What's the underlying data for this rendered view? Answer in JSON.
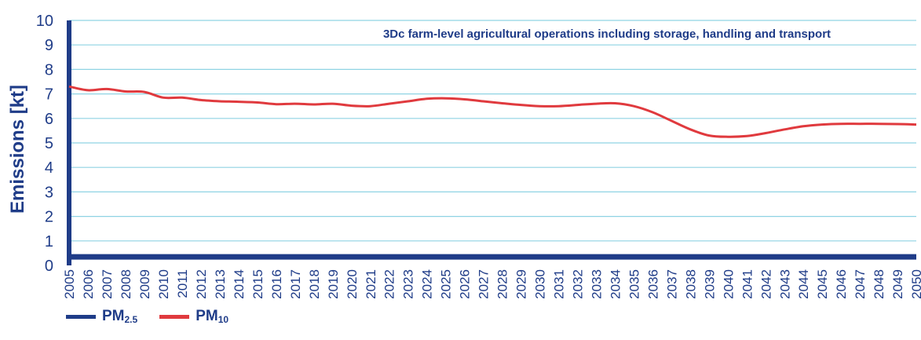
{
  "chart_data": {
    "type": "line",
    "title": "3Dc farm-level agricultural operations including storage, handling and transport",
    "ylabel": "Emissions [kt]",
    "xlabel": "",
    "ylim": [
      0,
      10
    ],
    "yticks": [
      "0",
      "1",
      "2",
      "3",
      "4",
      "5",
      "6",
      "7",
      "8",
      "9",
      "10"
    ],
    "grid": true,
    "legend_position": "bottom-left",
    "x": [
      2005,
      2006,
      2007,
      2008,
      2009,
      2010,
      2011,
      2012,
      2013,
      2014,
      2015,
      2016,
      2017,
      2018,
      2019,
      2020,
      2021,
      2022,
      2023,
      2024,
      2025,
      2026,
      2027,
      2028,
      2029,
      2030,
      2031,
      2032,
      2033,
      2034,
      2035,
      2036,
      2037,
      2038,
      2039,
      2040,
      2041,
      2042,
      2043,
      2044,
      2045,
      2046,
      2047,
      2048,
      2049,
      2050
    ],
    "series": [
      {
        "name": "PM2.5",
        "legend_main": "PM",
        "legend_sub": "2.5",
        "color": "#1f3c88",
        "values": [
          0.35,
          0.35,
          0.35,
          0.35,
          0.35,
          0.35,
          0.35,
          0.35,
          0.35,
          0.35,
          0.35,
          0.35,
          0.35,
          0.35,
          0.35,
          0.35,
          0.35,
          0.35,
          0.35,
          0.35,
          0.35,
          0.35,
          0.35,
          0.35,
          0.35,
          0.35,
          0.35,
          0.35,
          0.35,
          0.35,
          0.35,
          0.35,
          0.35,
          0.35,
          0.35,
          0.35,
          0.35,
          0.35,
          0.35,
          0.35,
          0.35,
          0.35,
          0.35,
          0.35,
          0.35,
          0.35
        ]
      },
      {
        "name": "PM10",
        "legend_main": "PM",
        "legend_sub": "10",
        "color": "#e03a3e",
        "values": [
          7.3,
          7.15,
          7.2,
          7.1,
          7.08,
          6.85,
          6.85,
          6.75,
          6.7,
          6.68,
          6.65,
          6.58,
          6.6,
          6.57,
          6.6,
          6.52,
          6.5,
          6.6,
          6.7,
          6.8,
          6.82,
          6.78,
          6.7,
          6.62,
          6.55,
          6.5,
          6.5,
          6.55,
          6.6,
          6.62,
          6.5,
          6.25,
          5.9,
          5.55,
          5.3,
          5.25,
          5.28,
          5.4,
          5.55,
          5.68,
          5.75,
          5.78,
          5.78,
          5.78,
          5.77,
          5.75
        ]
      }
    ]
  }
}
